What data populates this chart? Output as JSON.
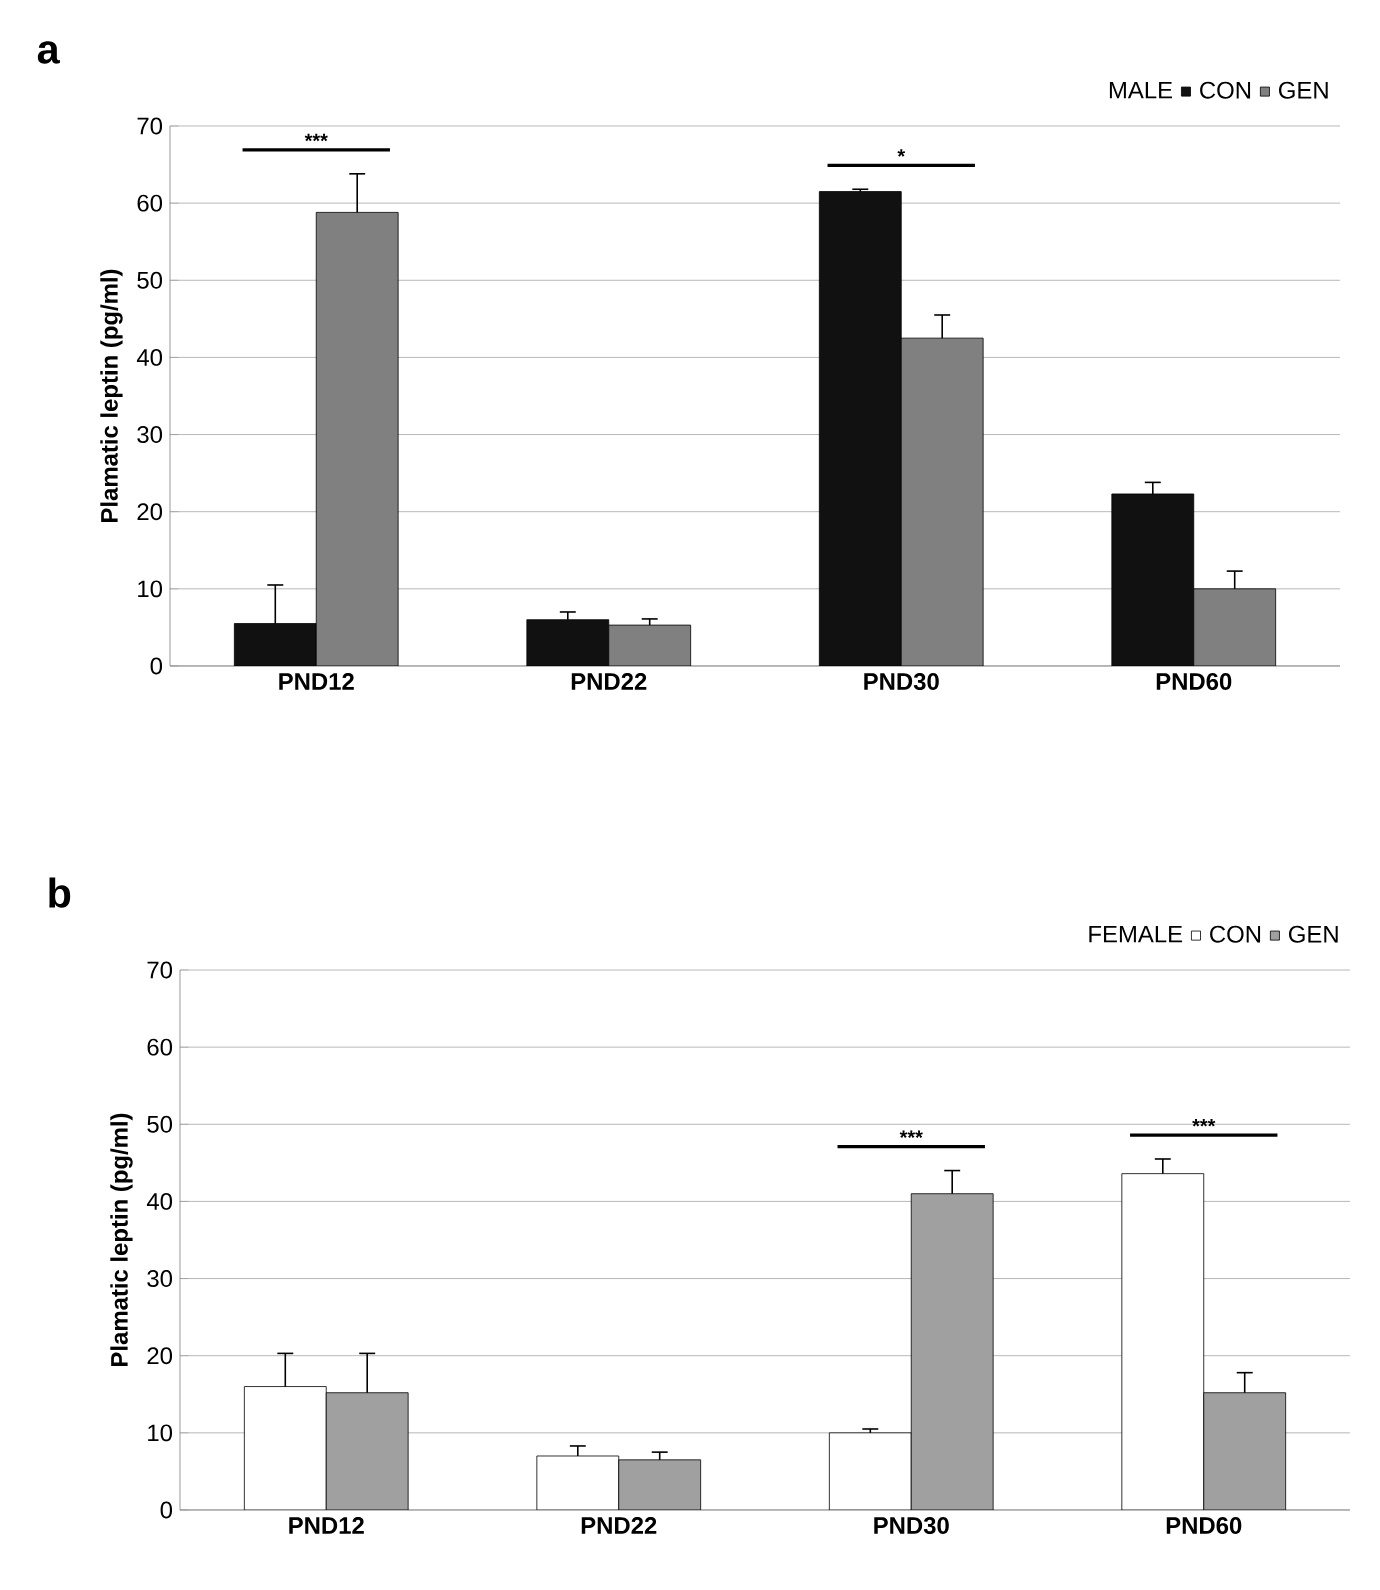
{
  "chart_data": [
    {
      "type": "bar",
      "title": "a",
      "ylabel": "Plamatic leptin (pg/ml)",
      "legend_title": "MALE",
      "legend": "top right",
      "categories": [
        "PND12",
        "PND22",
        "PND30",
        "PND60"
      ],
      "series": [
        {
          "name": "CON",
          "color": "#111111",
          "values": [
            5.5,
            6,
            61.5,
            22.3
          ],
          "errors": [
            [
              5.5,
              10.5
            ],
            [
              6,
              7
            ],
            [
              61.5,
              61.8
            ],
            [
              22.3,
              23.8
            ]
          ]
        },
        {
          "name": "GEN",
          "color": "#808080",
          "values": [
            58.8,
            5.3,
            42.5,
            10
          ],
          "errors": [
            [
              58.8,
              63.8
            ],
            [
              5.3,
              6.1
            ],
            [
              42.5,
              45.5
            ],
            [
              10,
              12.3
            ]
          ]
        }
      ],
      "ylim": [
        0,
        70
      ],
      "yticks": [
        0,
        10,
        20,
        30,
        40,
        50,
        60,
        70
      ],
      "grid": "y",
      "annotations": [
        "***",
        "*"
      ]
    },
    {
      "type": "bar",
      "title": "b",
      "ylabel": "Plamatic leptin (pg/ml)",
      "legend_title": "FEMALE",
      "legend": "top right",
      "categories": [
        "PND12",
        "PND22",
        "PND30",
        "PND60"
      ],
      "series": [
        {
          "name": "CON",
          "color": "#ffffff",
          "values": [
            16,
            7,
            10,
            43.6
          ],
          "errors": [
            [
              16,
              20.3
            ],
            [
              7,
              8.3
            ],
            [
              10,
              10.5
            ],
            [
              43.6,
              45.5
            ]
          ]
        },
        {
          "name": "GEN",
          "color": "#a0a0a0",
          "values": [
            15.2,
            6.5,
            41,
            15.2
          ],
          "errors": [
            [
              15.2,
              20.3
            ],
            [
              6.5,
              7.5
            ],
            [
              41,
              44
            ],
            [
              15.2,
              17.8
            ]
          ]
        }
      ],
      "ylim": [
        0,
        70
      ],
      "yticks": [
        0,
        10,
        20,
        30,
        40,
        50,
        60,
        70
      ],
      "grid": "y",
      "annotations": [
        "***",
        "***"
      ]
    }
  ]
}
